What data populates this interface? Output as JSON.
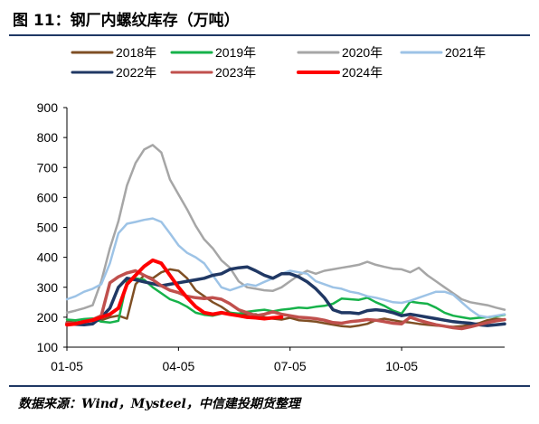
{
  "header": {
    "title": "图 11：钢厂内螺纹库存（万吨）"
  },
  "footer": {
    "source": "数据来源：Wind，Mysteel，中信建投期货整理"
  },
  "colors": {
    "rule": "#1f3864"
  },
  "chart_data": {
    "type": "line",
    "y_ticks": [
      "900",
      "800",
      "700",
      "600",
      "500",
      "400",
      "300",
      "200",
      "100"
    ],
    "x_ticks": [
      "01-05",
      "04-05",
      "07-05",
      "10-05"
    ],
    "x_tick_weeks": [
      0,
      13,
      26,
      39
    ],
    "ylim": [
      100,
      900
    ],
    "xlim": [
      0,
      51
    ],
    "legend_position": "top",
    "grid": false,
    "series": [
      {
        "name": "2018年",
        "color": "#7f4f24",
        "width": 2.5,
        "values": [
          185,
          182,
          186,
          188,
          190,
          200,
          205,
          195,
          310,
          340,
          330,
          350,
          360,
          355,
          330,
          290,
          270,
          250,
          235,
          215,
          208,
          210,
          210,
          200,
          195,
          192,
          198,
          190,
          188,
          185,
          180,
          175,
          170,
          168,
          172,
          178,
          190,
          195,
          190,
          185,
          182,
          178,
          175,
          172,
          170,
          168,
          170,
          175,
          180,
          190,
          195,
          192
        ]
      },
      {
        "name": "2019年",
        "color": "#16b24a",
        "width": 2.5,
        "values": [
          192,
          190,
          194,
          196,
          185,
          182,
          188,
          320,
          330,
          325,
          300,
          280,
          260,
          250,
          235,
          215,
          208,
          205,
          212,
          215,
          212,
          218,
          222,
          225,
          220,
          225,
          228,
          232,
          230,
          235,
          238,
          245,
          262,
          260,
          258,
          265,
          250,
          238,
          222,
          212,
          252,
          248,
          245,
          232,
          215,
          205,
          200,
          195,
          198,
          200,
          203,
          208
        ]
      },
      {
        "name": "2020年",
        "color": "#a6a6a6",
        "width": 2.5,
        "values": [
          215,
          222,
          230,
          240,
          320,
          430,
          520,
          640,
          715,
          760,
          775,
          750,
          660,
          610,
          560,
          505,
          460,
          430,
          390,
          365,
          320,
          300,
          295,
          290,
          288,
          300,
          320,
          340,
          355,
          345,
          355,
          360,
          365,
          370,
          375,
          385,
          375,
          368,
          362,
          360,
          350,
          365,
          340,
          320,
          300,
          280,
          260,
          250,
          245,
          240,
          232,
          225
        ]
      },
      {
        "name": "2021年",
        "color": "#9dc3e6",
        "width": 2.5,
        "values": [
          260,
          270,
          285,
          295,
          310,
          380,
          480,
          512,
          518,
          525,
          530,
          518,
          480,
          440,
          415,
          400,
          380,
          340,
          300,
          290,
          300,
          310,
          305,
          318,
          330,
          345,
          355,
          350,
          345,
          320,
          310,
          300,
          295,
          285,
          280,
          270,
          265,
          258,
          250,
          248,
          255,
          265,
          275,
          285,
          285,
          275,
          250,
          225,
          205,
          200,
          205,
          210
        ]
      },
      {
        "name": "2022年",
        "color": "#203864",
        "width": 3.5,
        "values": [
          180,
          176,
          175,
          178,
          200,
          230,
          300,
          330,
          325,
          318,
          312,
          305,
          310,
          315,
          320,
          325,
          330,
          340,
          345,
          360,
          365,
          368,
          355,
          340,
          330,
          345,
          345,
          335,
          318,
          295,
          265,
          225,
          215,
          215,
          212,
          222,
          225,
          222,
          215,
          205,
          210,
          205,
          200,
          195,
          190,
          185,
          182,
          180,
          175,
          172,
          175,
          178
        ]
      },
      {
        "name": "2023年",
        "color": "#c0504d",
        "width": 3.5,
        "values": [
          180,
          178,
          185,
          192,
          205,
          315,
          335,
          348,
          355,
          340,
          325,
          305,
          290,
          282,
          270,
          265,
          262,
          265,
          260,
          245,
          225,
          215,
          205,
          210,
          218,
          210,
          205,
          200,
          198,
          195,
          190,
          182,
          180,
          185,
          188,
          192,
          190,
          185,
          180,
          178,
          200,
          190,
          182,
          175,
          170,
          165,
          162,
          168,
          175,
          182,
          188,
          192
        ]
      },
      {
        "name": "2024年",
        "color": "#ff0000",
        "width": 4,
        "values": [
          175,
          178,
          185,
          190,
          200,
          210,
          230,
          310,
          340,
          370,
          390,
          380,
          340,
          300,
          265,
          235,
          215,
          210,
          215,
          210,
          205,
          200,
          198,
          195,
          198,
          200
        ]
      }
    ]
  }
}
